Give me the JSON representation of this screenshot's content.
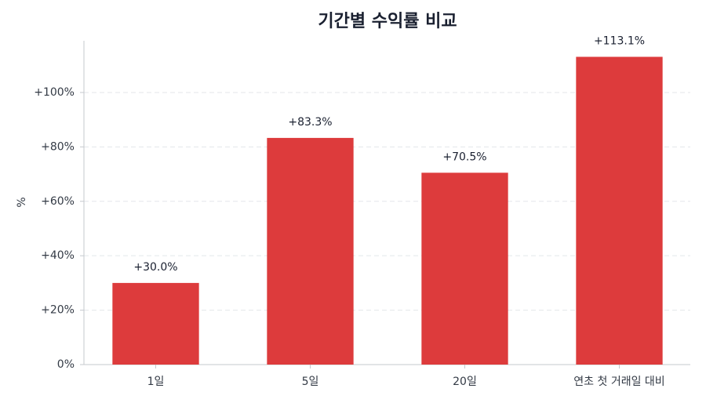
{
  "chart_data": {
    "type": "bar",
    "title": "기간별 수익률 비교",
    "y_label": "%",
    "categories": [
      "1일",
      "5일",
      "20일",
      "연초 첫 거래일 대비"
    ],
    "values": [
      30.0,
      83.3,
      70.5,
      113.1
    ],
    "value_labels": [
      "+30.0%",
      "+83.3%",
      "+70.5%",
      "+113.1%"
    ],
    "color": "#dd3b3c",
    "ylim": [
      0,
      119
    ],
    "yticks": [
      {
        "value": 0,
        "label": "0%"
      },
      {
        "value": 20,
        "label": "+20%"
      },
      {
        "value": 40,
        "label": "+40%"
      },
      {
        "value": 60,
        "label": "+60%"
      },
      {
        "value": 80,
        "label": "+80%"
      },
      {
        "value": 100,
        "label": "+100%"
      }
    ],
    "grid": true
  }
}
